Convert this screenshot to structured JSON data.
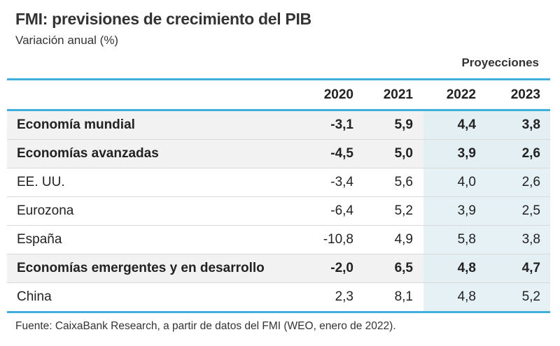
{
  "title": "FMI: previsiones de crecimiento del PIB",
  "subtitle": "Variación anual (%)",
  "projections_label": "Proyecciones",
  "columns": [
    "2020",
    "2021",
    "2022",
    "2023"
  ],
  "rows": [
    {
      "label": "Economía mundial",
      "values": [
        "-3,1",
        "5,9",
        "4,4",
        "3,8"
      ],
      "bold": true
    },
    {
      "label": "Economías avanzadas",
      "values": [
        "-4,5",
        "5,0",
        "3,9",
        "2,6"
      ],
      "bold": true
    },
    {
      "label": "EE. UU.",
      "values": [
        "-3,4",
        "5,6",
        "4,0",
        "2,6"
      ],
      "bold": false
    },
    {
      "label": "Eurozona",
      "values": [
        "-6,4",
        "5,2",
        "3,9",
        "2,5"
      ],
      "bold": false
    },
    {
      "label": "España",
      "values": [
        "-10,8",
        "4,9",
        "5,8",
        "3,8"
      ],
      "bold": false
    },
    {
      "label": "Economías emergentes y en desarrollo",
      "values": [
        "-2,0",
        "6,5",
        "4,8",
        "4,7"
      ],
      "bold": true
    },
    {
      "label": "China",
      "values": [
        "2,3",
        "8,1",
        "4,8",
        "5,2"
      ],
      "bold": false
    }
  ],
  "source": "Fuente: CaixaBank Research, a partir de datos del FMI (WEO, enero de 2022).",
  "colors": {
    "accent_line": "#3fb0dc",
    "bold_row_bg": "#f2f2f2",
    "projection_bg": "#e6f1f6"
  }
}
